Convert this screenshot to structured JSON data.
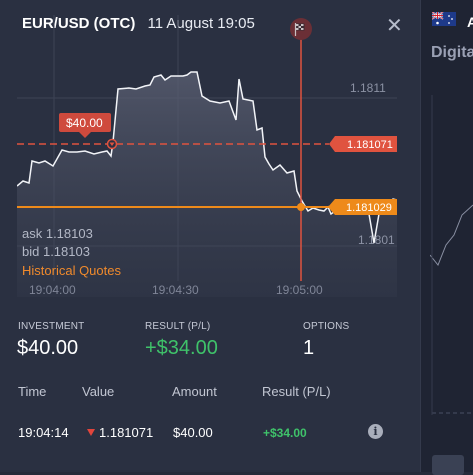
{
  "header": {
    "pair": "EUR/USD (OTC)",
    "datetime": "11 August 19:05"
  },
  "chart": {
    "price_labels": {
      "top": "1.1811",
      "bottom": "1.1801"
    },
    "strike_tag": "1.181071",
    "current_tag": "1.181029",
    "investment_tag": "$40.00",
    "time_labels": [
      "19:04:00",
      "19:04:30",
      "19:05:00"
    ],
    "colors": {
      "strike": "#e0533f",
      "current": "#ee8a1a",
      "expiry": "#e0533f"
    }
  },
  "quotes": {
    "ask": "ask 1.18103",
    "bid": "bid 1.18103",
    "historical_link": "Historical Quotes"
  },
  "summary": {
    "investment_label": "INVESTMENT",
    "investment_value": "$40.00",
    "result_label": "RESULT (P/L)",
    "result_value": "+$34.00",
    "options_label": "OPTIONS",
    "options_value": "1"
  },
  "table": {
    "headers": {
      "time": "Time",
      "value": "Value",
      "amount": "Amount",
      "result": "Result (P/L)"
    },
    "rows": [
      {
        "time": "19:04:14",
        "value": "1.181071",
        "amount": "$40.00",
        "result": "+$34.00"
      }
    ]
  },
  "sidebar": {
    "asset_initial": "A",
    "section_label": "Digita"
  }
}
